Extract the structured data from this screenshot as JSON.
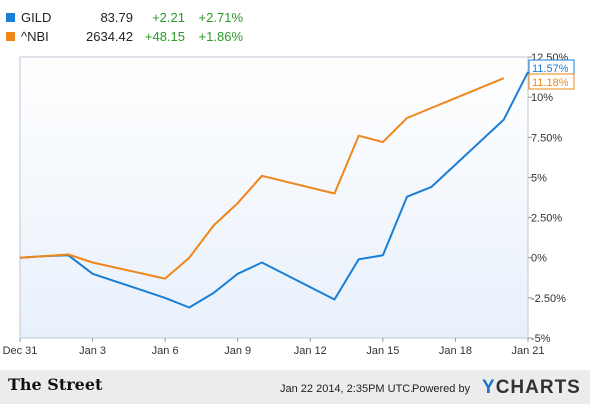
{
  "legend": [
    {
      "symbol": "GILD",
      "price": "83.79",
      "change": "+2.21",
      "change_pct": "+2.71%",
      "color": "#1a7fd4"
    },
    {
      "symbol": "^NBI",
      "price": "2634.42",
      "change": "+48.15",
      "change_pct": "+1.86%",
      "color": "#f0861a"
    }
  ],
  "footer": {
    "brand_left": "The Street",
    "timestamp": "Jan 22 2014, 2:35PM UTC.",
    "powered_by": "Powered by",
    "brand_right_y": "Y",
    "brand_right_rest": "CHARTS"
  },
  "chart_data": {
    "type": "line",
    "x_ticks": [
      "Dec 31",
      "Jan 3",
      "Jan 6",
      "Jan 9",
      "Jan 12",
      "Jan 15",
      "Jan 18",
      "Jan 21"
    ],
    "y_ticks": [
      "12.50%",
      "10%",
      "7.50%",
      "5%",
      "2.50%",
      "0%",
      "-2.50%",
      "-5%"
    ],
    "ylim": [
      -5,
      12.5
    ],
    "grid": false,
    "series": [
      {
        "name": "GILD",
        "color": "#1a7fd4",
        "end_label": "11.57%",
        "points": [
          [
            0,
            0
          ],
          [
            1,
            0.1
          ],
          [
            2,
            0.15
          ],
          [
            3,
            -1
          ],
          [
            6,
            -2.5
          ],
          [
            7,
            -3.1
          ],
          [
            8,
            -2.2
          ],
          [
            9,
            -1
          ],
          [
            10,
            -0.3
          ],
          [
            13,
            -2.6
          ],
          [
            14,
            -0.1
          ],
          [
            15,
            0.15
          ],
          [
            16,
            3.8
          ],
          [
            17,
            4.4
          ],
          [
            20,
            8.6
          ],
          [
            21,
            11.57
          ]
        ]
      },
      {
        "name": "^NBI",
        "color": "#f0861a",
        "end_label": "11.18%",
        "points": [
          [
            0,
            0
          ],
          [
            1,
            0.1
          ],
          [
            2,
            0.2
          ],
          [
            3,
            -0.3
          ],
          [
            6,
            -1.3
          ],
          [
            7,
            0
          ],
          [
            8,
            2
          ],
          [
            9,
            3.4
          ],
          [
            10,
            5.1
          ],
          [
            13,
            4
          ],
          [
            14,
            7.6
          ],
          [
            15,
            7.2
          ],
          [
            16,
            8.7
          ],
          [
            20,
            11.18
          ]
        ]
      }
    ]
  }
}
